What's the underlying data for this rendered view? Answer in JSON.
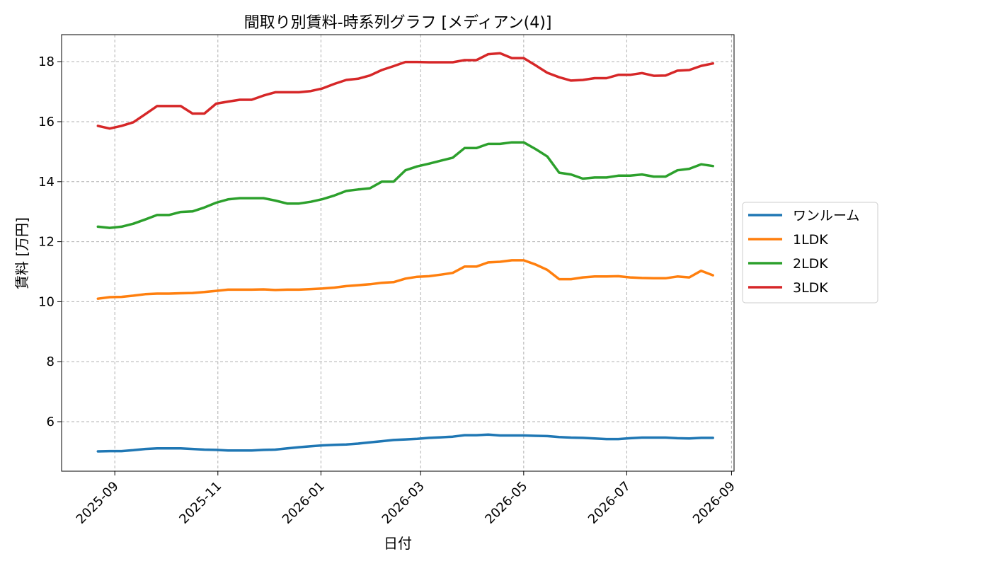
{
  "chart_data": {
    "type": "line",
    "title": "間取り別賃料-時系列グラフ [メディアン(4)]",
    "xlabel": "日付",
    "ylabel": "賃料 [万円]",
    "x_tick_labels": [
      "2025-09",
      "2025-11",
      "2026-01",
      "2026-03",
      "2026-05",
      "2026-07",
      "2026-09"
    ],
    "y_ticks": [
      6,
      8,
      10,
      12,
      14,
      16,
      18
    ],
    "ylim": [
      4.35,
      18.9
    ],
    "grid": true,
    "legend_position": "right",
    "x": [
      "2025-08-22",
      "2025-08-29",
      "2025-09-05",
      "2025-09-12",
      "2025-09-19",
      "2025-09-26",
      "2025-10-03",
      "2025-10-10",
      "2025-10-17",
      "2025-10-24",
      "2025-10-31",
      "2025-11-07",
      "2025-11-14",
      "2025-11-21",
      "2025-11-28",
      "2025-12-05",
      "2025-12-12",
      "2025-12-19",
      "2025-12-26",
      "2026-01-02",
      "2026-01-09",
      "2026-01-16",
      "2026-01-23",
      "2026-01-30",
      "2026-02-06",
      "2026-02-13",
      "2026-02-20",
      "2026-02-27",
      "2026-03-06",
      "2026-03-13",
      "2026-03-20",
      "2026-03-27",
      "2026-04-03",
      "2026-04-10",
      "2026-04-17",
      "2026-04-24",
      "2026-05-01",
      "2026-05-08",
      "2026-05-15",
      "2026-05-22",
      "2026-05-29",
      "2026-06-05",
      "2026-06-12",
      "2026-06-19",
      "2026-06-26",
      "2026-07-03",
      "2026-07-10",
      "2026-07-17",
      "2026-07-24",
      "2026-07-31",
      "2026-08-07",
      "2026-08-14",
      "2026-08-21"
    ],
    "series": [
      {
        "name": "ワンルーム",
        "color": "#1f77b4",
        "values": [
          5.01,
          5.02,
          5.02,
          5.05,
          5.09,
          5.11,
          5.11,
          5.11,
          5.09,
          5.07,
          5.06,
          5.04,
          5.04,
          5.04,
          5.06,
          5.07,
          5.11,
          5.15,
          5.18,
          5.21,
          5.23,
          5.24,
          5.27,
          5.31,
          5.35,
          5.39,
          5.41,
          5.43,
          5.46,
          5.48,
          5.5,
          5.55,
          5.55,
          5.57,
          5.54,
          5.54,
          5.54,
          5.53,
          5.52,
          5.49,
          5.47,
          5.46,
          5.44,
          5.42,
          5.42,
          5.45,
          5.47,
          5.47,
          5.47,
          5.45,
          5.44,
          5.46,
          5.46
        ]
      },
      {
        "name": "1LDK",
        "color": "#ff7f0e",
        "values": [
          10.1,
          10.15,
          10.16,
          10.2,
          10.25,
          10.27,
          10.27,
          10.28,
          10.29,
          10.32,
          10.36,
          10.4,
          10.4,
          10.4,
          10.41,
          10.39,
          10.4,
          10.4,
          10.42,
          10.44,
          10.47,
          10.52,
          10.55,
          10.58,
          10.63,
          10.65,
          10.77,
          10.83,
          10.85,
          10.9,
          10.96,
          11.17,
          11.17,
          11.31,
          11.33,
          11.38,
          11.38,
          11.24,
          11.06,
          10.75,
          10.75,
          10.81,
          10.84,
          10.84,
          10.85,
          10.81,
          10.79,
          10.78,
          10.78,
          10.84,
          10.81,
          11.03,
          10.88
        ]
      },
      {
        "name": "2LDK",
        "color": "#2ca02c",
        "values": [
          12.5,
          12.46,
          12.5,
          12.6,
          12.74,
          12.89,
          12.89,
          12.99,
          13.01,
          13.14,
          13.3,
          13.41,
          13.45,
          13.45,
          13.45,
          13.37,
          13.27,
          13.27,
          13.33,
          13.42,
          13.54,
          13.69,
          13.74,
          13.78,
          14.0,
          14.0,
          14.38,
          14.51,
          14.6,
          14.7,
          14.8,
          15.12,
          15.12,
          15.26,
          15.26,
          15.31,
          15.31,
          15.09,
          14.84,
          14.3,
          14.24,
          14.1,
          14.14,
          14.14,
          14.2,
          14.2,
          14.24,
          14.17,
          14.17,
          14.38,
          14.43,
          14.58,
          14.52
        ]
      },
      {
        "name": "3LDK",
        "color": "#d62728",
        "values": [
          15.86,
          15.77,
          15.86,
          15.98,
          16.25,
          16.52,
          16.52,
          16.52,
          16.27,
          16.27,
          16.6,
          16.67,
          16.73,
          16.73,
          16.87,
          16.98,
          16.98,
          16.98,
          17.02,
          17.11,
          17.26,
          17.39,
          17.43,
          17.54,
          17.72,
          17.85,
          17.99,
          17.99,
          17.98,
          17.98,
          17.98,
          18.05,
          18.05,
          18.25,
          18.28,
          18.12,
          18.12,
          17.88,
          17.63,
          17.48,
          17.37,
          17.39,
          17.45,
          17.45,
          17.56,
          17.56,
          17.62,
          17.53,
          17.54,
          17.7,
          17.72,
          17.86,
          17.94
        ]
      }
    ]
  }
}
